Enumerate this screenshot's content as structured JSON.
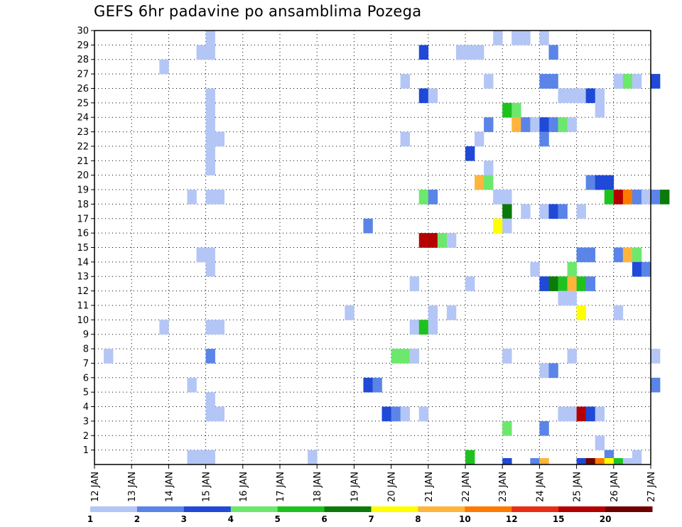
{
  "chart_data": {
    "type": "heatmap",
    "title": "GEFS 6hr padavine po ansamblima Pozega",
    "x_ticks": [
      "12 JAN",
      "13 JAN",
      "14 JAN",
      "15 JAN",
      "16 JAN",
      "17 JAN",
      "18 JAN",
      "19 JAN",
      "20 JAN",
      "21 JAN",
      "22 JAN",
      "23 JAN",
      "24 JAN",
      "25 JAN",
      "26 JAN",
      "27 JAN"
    ],
    "y_ticks": [
      1,
      2,
      3,
      4,
      5,
      6,
      7,
      8,
      9,
      10,
      11,
      12,
      13,
      14,
      15,
      16,
      17,
      18,
      19,
      20,
      21,
      22,
      23,
      24,
      25,
      26,
      27,
      28,
      29,
      30
    ],
    "ylim": [
      0,
      30
    ],
    "grid": true,
    "colorbar": {
      "labels": [
        "1",
        "2",
        "3",
        "4",
        "5",
        "6",
        "7",
        "8",
        "10",
        "12",
        "15",
        "20"
      ],
      "colors": [
        "#b4c6f5",
        "#5a84e8",
        "#1f49d6",
        "#6ce86c",
        "#1ec21e",
        "#0b7a0b",
        "#ffff00",
        "#ffb43c",
        "#ff7a00",
        "#e82d14",
        "#b40000",
        "#6e0000"
      ]
    },
    "cells_note_units": "x = day index from 12 JAN (0) in 6h steps; y = ensemble member; c = color class",
    "cells": [
      [
        3.0,
        30,
        0
      ],
      [
        10.75,
        30,
        0
      ],
      [
        11.25,
        30,
        0
      ],
      [
        11.5,
        30,
        0
      ],
      [
        12.0,
        30,
        0
      ],
      [
        2.75,
        29,
        0
      ],
      [
        3.0,
        29,
        0
      ],
      [
        8.75,
        29,
        2
      ],
      [
        9.75,
        29,
        0
      ],
      [
        10.0,
        29,
        0
      ],
      [
        10.25,
        29,
        0
      ],
      [
        12.25,
        29,
        1
      ],
      [
        1.75,
        28,
        0
      ],
      [
        8.25,
        27,
        0
      ],
      [
        10.5,
        27,
        0
      ],
      [
        12.0,
        27,
        1
      ],
      [
        12.25,
        27,
        1
      ],
      [
        14.0,
        27,
        0
      ],
      [
        14.25,
        27,
        3
      ],
      [
        14.5,
        27,
        0
      ],
      [
        15.0,
        27,
        2
      ],
      [
        3.0,
        26,
        0
      ],
      [
        8.75,
        26,
        2
      ],
      [
        9.0,
        26,
        0
      ],
      [
        12.5,
        26,
        0
      ],
      [
        12.75,
        26,
        0
      ],
      [
        13.0,
        26,
        0
      ],
      [
        13.25,
        26,
        2
      ],
      [
        13.5,
        26,
        0
      ],
      [
        3.0,
        25,
        0
      ],
      [
        11.0,
        25,
        4
      ],
      [
        11.25,
        25,
        3
      ],
      [
        13.5,
        25,
        0
      ],
      [
        3.0,
        24,
        0
      ],
      [
        10.5,
        24,
        1
      ],
      [
        11.25,
        24,
        7
      ],
      [
        11.5,
        24,
        1
      ],
      [
        11.75,
        24,
        0
      ],
      [
        12.0,
        24,
        2
      ],
      [
        12.25,
        24,
        1
      ],
      [
        12.5,
        24,
        3
      ],
      [
        12.75,
        24,
        0
      ],
      [
        3.0,
        23,
        0
      ],
      [
        3.25,
        23,
        0
      ],
      [
        8.25,
        23,
        0
      ],
      [
        10.25,
        23,
        0
      ],
      [
        12.0,
        23,
        1
      ],
      [
        3.0,
        22,
        0
      ],
      [
        10.0,
        22,
        2
      ],
      [
        3.0,
        21,
        0
      ],
      [
        10.5,
        21,
        0
      ],
      [
        10.25,
        20,
        7
      ],
      [
        10.5,
        20,
        3
      ],
      [
        13.25,
        20,
        1
      ],
      [
        13.5,
        20,
        2
      ],
      [
        13.75,
        20,
        2
      ],
      [
        2.5,
        19,
        0
      ],
      [
        3.0,
        19,
        0
      ],
      [
        3.25,
        19,
        0
      ],
      [
        8.75,
        19,
        3
      ],
      [
        9.0,
        19,
        1
      ],
      [
        10.75,
        19,
        0
      ],
      [
        11.0,
        19,
        0
      ],
      [
        13.75,
        19,
        4
      ],
      [
        14.0,
        19,
        10
      ],
      [
        14.25,
        19,
        8
      ],
      [
        14.5,
        19,
        1
      ],
      [
        14.75,
        19,
        0
      ],
      [
        15.0,
        19,
        1
      ],
      [
        15.25,
        19,
        5
      ],
      [
        11.0,
        18,
        5
      ],
      [
        11.5,
        18,
        0
      ],
      [
        12.0,
        18,
        0
      ],
      [
        12.25,
        18,
        2
      ],
      [
        12.5,
        18,
        1
      ],
      [
        13.0,
        18,
        0
      ],
      [
        7.25,
        17,
        1
      ],
      [
        10.75,
        17,
        6
      ],
      [
        11.0,
        17,
        0
      ],
      [
        8.75,
        16,
        10
      ],
      [
        9.0,
        16,
        10
      ],
      [
        9.25,
        16,
        3
      ],
      [
        9.5,
        16,
        0
      ],
      [
        13.0,
        15,
        1
      ],
      [
        13.25,
        15,
        1
      ],
      [
        14.0,
        15,
        1
      ],
      [
        14.25,
        15,
        7
      ],
      [
        14.5,
        15,
        3
      ],
      [
        2.75,
        15,
        0
      ],
      [
        3.0,
        15,
        0
      ],
      [
        11.75,
        14,
        0
      ],
      [
        12.75,
        14,
        3
      ],
      [
        14.5,
        14,
        2
      ],
      [
        14.75,
        14,
        1
      ],
      [
        3.0,
        14,
        0
      ],
      [
        8.5,
        13,
        0
      ],
      [
        10.0,
        13,
        0
      ],
      [
        12.0,
        13,
        2
      ],
      [
        12.25,
        13,
        5
      ],
      [
        12.5,
        13,
        4
      ],
      [
        12.75,
        13,
        7
      ],
      [
        13.0,
        13,
        4
      ],
      [
        13.25,
        13,
        1
      ],
      [
        12.5,
        12,
        0
      ],
      [
        12.75,
        12,
        0
      ],
      [
        6.75,
        11,
        0
      ],
      [
        9.0,
        11,
        0
      ],
      [
        9.5,
        11,
        0
      ],
      [
        13.0,
        11,
        6
      ],
      [
        14.0,
        11,
        0
      ],
      [
        1.75,
        10,
        0
      ],
      [
        3.0,
        10,
        0
      ],
      [
        3.25,
        10,
        0
      ],
      [
        8.5,
        10,
        0
      ],
      [
        8.75,
        10,
        4
      ],
      [
        9.0,
        10,
        0
      ],
      [
        0.25,
        8,
        0
      ],
      [
        3.0,
        8,
        1
      ],
      [
        8.0,
        8,
        3
      ],
      [
        8.25,
        8,
        3
      ],
      [
        8.5,
        8,
        0
      ],
      [
        11.0,
        8,
        0
      ],
      [
        12.75,
        8,
        0
      ],
      [
        15.0,
        8,
        0
      ],
      [
        12.0,
        7,
        0
      ],
      [
        12.25,
        7,
        1
      ],
      [
        2.5,
        6,
        0
      ],
      [
        7.25,
        6,
        2
      ],
      [
        7.5,
        6,
        1
      ],
      [
        15.0,
        6,
        1
      ],
      [
        3.0,
        5,
        0
      ],
      [
        3.0,
        4,
        0
      ],
      [
        3.25,
        4,
        0
      ],
      [
        7.75,
        4,
        2
      ],
      [
        8.0,
        4,
        1
      ],
      [
        8.25,
        4,
        0
      ],
      [
        8.75,
        4,
        0
      ],
      [
        12.5,
        4,
        0
      ],
      [
        12.75,
        4,
        0
      ],
      [
        13.0,
        4,
        10
      ],
      [
        13.25,
        4,
        2
      ],
      [
        13.5,
        4,
        0
      ],
      [
        11.0,
        3,
        3
      ],
      [
        12.0,
        3,
        1
      ],
      [
        13.5,
        2,
        0
      ],
      [
        2.5,
        1,
        0
      ],
      [
        2.75,
        1,
        0
      ],
      [
        3.0,
        1,
        0
      ],
      [
        5.75,
        1,
        0
      ],
      [
        10.0,
        1,
        4
      ],
      [
        13.75,
        1,
        1
      ],
      [
        14.5,
        1,
        0
      ]
    ],
    "bottom_strip": [
      [
        3.0,
        0
      ],
      [
        11.0,
        2
      ],
      [
        11.75,
        1
      ],
      [
        12.0,
        7
      ],
      [
        13.0,
        2
      ],
      [
        13.25,
        11
      ],
      [
        13.5,
        8
      ],
      [
        13.75,
        6
      ],
      [
        14.0,
        4
      ],
      [
        14.25,
        0
      ]
    ]
  }
}
